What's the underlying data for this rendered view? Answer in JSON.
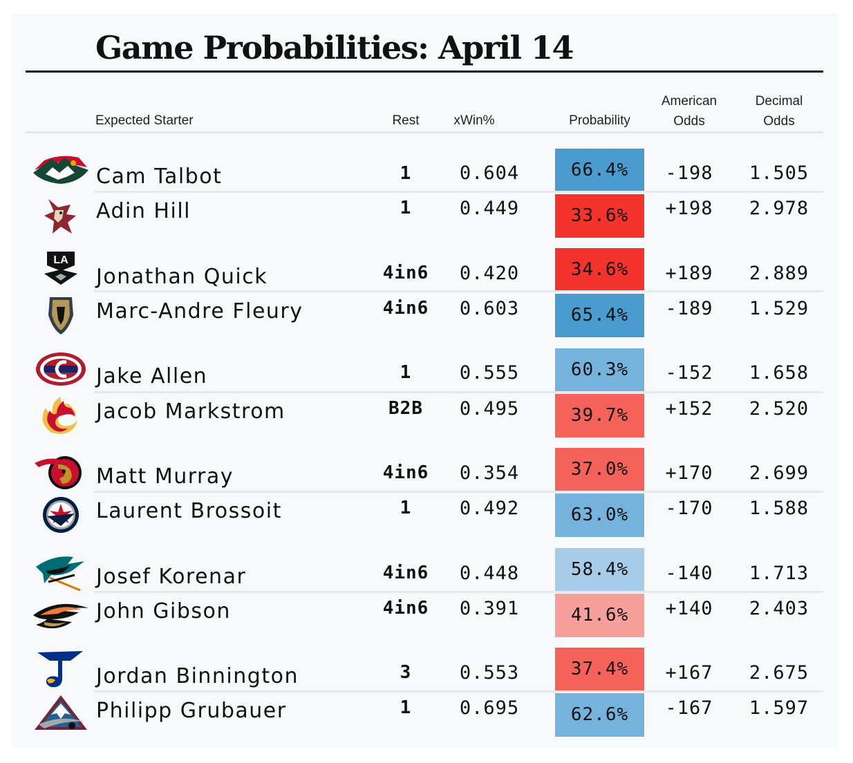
{
  "title": "Game Probabilities: April 14",
  "headers": {
    "starter": "Expected Starter",
    "rest": "Rest",
    "xwin": "xWin%",
    "probability": "Probability",
    "american_line1": "American",
    "american_line2": "Odds",
    "decimal_line1": "Decimal",
    "decimal_line2": "Odds"
  },
  "colors": {
    "fav_strong": "#4a9ccf",
    "fav_mid": "#76b3dc",
    "fav_light": "#a6cce9",
    "dog_strong": "#f3332c",
    "dog_mid": "#f5625a",
    "dog_light": "#f7a09b"
  },
  "games": [
    {
      "team_logo_top": "wild-logo",
      "team_logo_bottom": "coyotes-logo",
      "top": {
        "name": "Cam Talbot",
        "rest": "1",
        "xwin": "0.604",
        "probability": "66.4%",
        "american": "-198",
        "decimal": "1.505",
        "color": "#4a9ccf"
      },
      "bottom": {
        "name": "Adin Hill",
        "rest": "1",
        "xwin": "0.449",
        "probability": "33.6%",
        "american": "+198",
        "decimal": "2.978",
        "color": "#f3332c"
      }
    },
    {
      "team_logo_top": "kings-logo",
      "team_logo_bottom": "golden-knights-logo",
      "top": {
        "name": "Jonathan Quick",
        "rest": "4in6",
        "xwin": "0.420",
        "probability": "34.6%",
        "american": "+189",
        "decimal": "2.889",
        "color": "#f3332c"
      },
      "bottom": {
        "name": "Marc-Andre Fleury",
        "rest": "4in6",
        "xwin": "0.603",
        "probability": "65.4%",
        "american": "-189",
        "decimal": "1.529",
        "color": "#4a9ccf"
      }
    },
    {
      "team_logo_top": "canadiens-logo",
      "team_logo_bottom": "flames-logo",
      "top": {
        "name": "Jake Allen",
        "rest": "1",
        "xwin": "0.555",
        "probability": "60.3%",
        "american": "-152",
        "decimal": "1.658",
        "color": "#76b3dc"
      },
      "bottom": {
        "name": "Jacob Markstrom",
        "rest": "B2B",
        "xwin": "0.495",
        "probability": "39.7%",
        "american": "+152",
        "decimal": "2.520",
        "color": "#f5625a"
      }
    },
    {
      "team_logo_top": "senators-logo",
      "team_logo_bottom": "jets-logo",
      "top": {
        "name": "Matt Murray",
        "rest": "4in6",
        "xwin": "0.354",
        "probability": "37.0%",
        "american": "+170",
        "decimal": "2.699",
        "color": "#f5625a"
      },
      "bottom": {
        "name": "Laurent Brossoit",
        "rest": "1",
        "xwin": "0.492",
        "probability": "63.0%",
        "american": "-170",
        "decimal": "1.588",
        "color": "#76b3dc"
      }
    },
    {
      "team_logo_top": "sharks-logo",
      "team_logo_bottom": "ducks-logo",
      "top": {
        "name": "Josef Korenar",
        "rest": "4in6",
        "xwin": "0.448",
        "probability": "58.4%",
        "american": "-140",
        "decimal": "1.713",
        "color": "#a6cce9"
      },
      "bottom": {
        "name": "John Gibson",
        "rest": "4in6",
        "xwin": "0.391",
        "probability": "41.6%",
        "american": "+140",
        "decimal": "2.403",
        "color": "#f7a09b"
      }
    },
    {
      "team_logo_top": "blues-logo",
      "team_logo_bottom": "avalanche-logo",
      "top": {
        "name": "Jordan Binnington",
        "rest": "3",
        "xwin": "0.553",
        "probability": "37.4%",
        "american": "+167",
        "decimal": "2.675",
        "color": "#f5625a"
      },
      "bottom": {
        "name": "Philipp Grubauer",
        "rest": "1",
        "xwin": "0.695",
        "probability": "62.6%",
        "american": "-167",
        "decimal": "1.597",
        "color": "#76b3dc"
      }
    }
  ]
}
